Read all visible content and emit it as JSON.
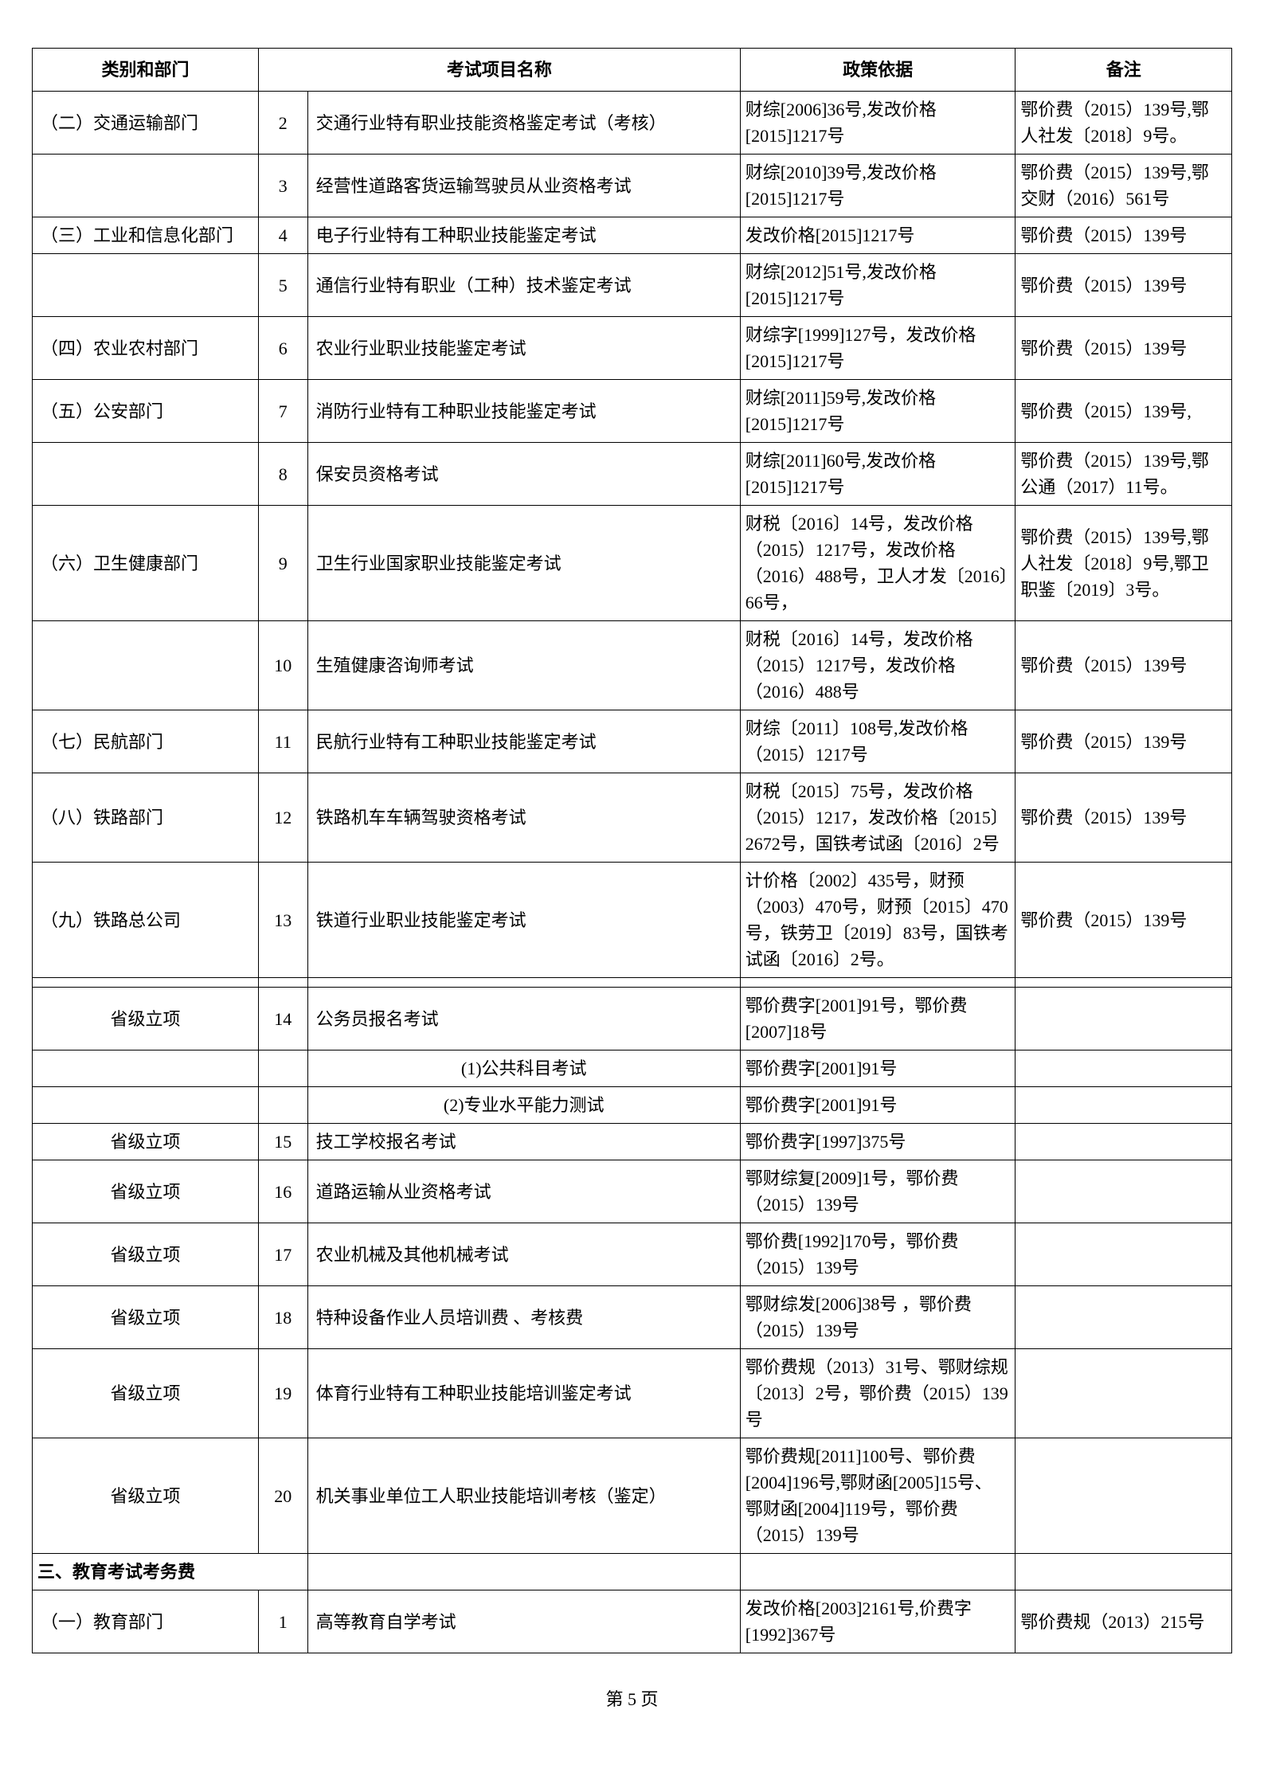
{
  "headers": {
    "dept": "类别和部门",
    "item": "考试项目名称",
    "policy": "政策依据",
    "note": "备注"
  },
  "rows": [
    {
      "dept": "（二）交通运输部门",
      "num": "2",
      "item": "交通行业特有职业技能资格鉴定考试（考核）",
      "policy": "财综[2006]36号,发改价格[2015]1217号",
      "note": "鄂价费（2015）139号,鄂人社发〔2018〕9号。"
    },
    {
      "dept": "",
      "num": "3",
      "item": "经营性道路客货运输驾驶员从业资格考试",
      "policy": "财综[2010]39号,发改价格[2015]1217号",
      "note": "鄂价费（2015）139号,鄂交财（2016）561号"
    },
    {
      "dept": "（三）工业和信息化部门",
      "num": "4",
      "item": "电子行业特有工种职业技能鉴定考试",
      "policy": "发改价格[2015]1217号",
      "note": "鄂价费（2015）139号"
    },
    {
      "dept": "",
      "num": "5",
      "item": "通信行业特有职业（工种）技术鉴定考试",
      "policy": "财综[2012]51号,发改价格[2015]1217号",
      "note": "鄂价费（2015）139号"
    },
    {
      "dept": "（四）农业农村部门",
      "num": "6",
      "item": "农业行业职业技能鉴定考试",
      "policy": "财综字[1999]127号，发改价格[2015]1217号",
      "note": "鄂价费（2015）139号"
    },
    {
      "dept": "（五）公安部门",
      "num": "7",
      "item": "消防行业特有工种职业技能鉴定考试",
      "policy": "财综[2011]59号,发改价格[2015]1217号",
      "note": "鄂价费（2015）139号,"
    },
    {
      "dept": "",
      "num": "8",
      "item": "保安员资格考试",
      "policy": "财综[2011]60号,发改价格[2015]1217号",
      "note": "鄂价费（2015）139号,鄂公通（2017）11号。"
    },
    {
      "dept": "（六）卫生健康部门",
      "num": "9",
      "item": "卫生行业国家职业技能鉴定考试",
      "policy": "财税〔2016〕14号，发改价格（2015）1217号，发改价格（2016）488号，卫人才发〔2016〕66号，",
      "note": "鄂价费（2015）139号,鄂人社发〔2018〕9号,鄂卫职鉴〔2019〕3号。"
    },
    {
      "dept": "",
      "num": "10",
      "item": "生殖健康咨询师考试",
      "policy": "财税〔2016〕14号，发改价格（2015）1217号，发改价格（2016）488号",
      "note": "鄂价费（2015）139号"
    },
    {
      "dept": "（七）民航部门",
      "num": "11",
      "item": "民航行业特有工种职业技能鉴定考试",
      "policy": "财综〔2011〕108号,发改价格（2015）1217号",
      "note": "鄂价费（2015）139号"
    },
    {
      "dept": "（八）铁路部门",
      "num": "12",
      "item": "铁路机车车辆驾驶资格考试",
      "policy": "财税〔2015〕75号，发改价格（2015）1217，发改价格〔2015〕2672号，国铁考试函〔2016〕2号",
      "note": "鄂价费（2015）139号"
    },
    {
      "dept": "（九）铁路总公司",
      "num": "13",
      "item": "铁道行业职业技能鉴定考试",
      "policy": "计价格〔2002〕435号，财预（2003）470号，财预〔2015〕470号，铁劳卫〔2019〕83号，国铁考试函〔2016〕2号。",
      "note": "鄂价费（2015）139号"
    }
  ],
  "spacer": true,
  "sub_rows": [
    {
      "dept": "省级立项",
      "deptCenter": true,
      "num": "14",
      "item": "公务员报名考试",
      "policy": "鄂价费字[2001]91号，鄂价费[2007]18号",
      "note": ""
    },
    {
      "dept": "",
      "num": "",
      "item": "(1)公共科目考试",
      "itemIndent": true,
      "policy": "鄂价费字[2001]91号",
      "note": ""
    },
    {
      "dept": "",
      "num": "",
      "item": "(2)专业水平能力测试",
      "itemIndent": true,
      "policy": "鄂价费字[2001]91号",
      "note": ""
    },
    {
      "dept": "省级立项",
      "deptCenter": true,
      "num": "15",
      "item": "技工学校报名考试",
      "policy": "鄂价费字[1997]375号",
      "note": ""
    },
    {
      "dept": "省级立项",
      "deptCenter": true,
      "num": "16",
      "item": "道路运输从业资格考试",
      "policy": "鄂财综复[2009]1号，鄂价费（2015）139号",
      "note": ""
    },
    {
      "dept": "省级立项",
      "deptCenter": true,
      "num": "17",
      "item": "农业机械及其他机械考试",
      "policy": "鄂价费[1992]170号，鄂价费（2015）139号",
      "note": ""
    },
    {
      "dept": "省级立项",
      "deptCenter": true,
      "num": "18",
      "item": "特种设备作业人员培训费 、考核费",
      "policy": "鄂财综发[2006]38号 ，鄂价费（2015）139号",
      "note": ""
    },
    {
      "dept": "省级立项",
      "deptCenter": true,
      "num": "19",
      "item": "体育行业特有工种职业技能培训鉴定考试",
      "policy": "鄂价费规（2013）31号、鄂财综规〔2013〕2号，鄂价费（2015）139号",
      "note": ""
    },
    {
      "dept": "省级立项",
      "deptCenter": true,
      "num": "20",
      "item": "机关事业单位工人职业技能培训考核（鉴定）",
      "policy": "鄂价费规[2011]100号、鄂价费[2004]196号,鄂财函[2005]15号、鄂财函[2004]119号，鄂价费（2015）139号",
      "note": ""
    }
  ],
  "section": {
    "label": "三、教育考试考务费"
  },
  "section_rows": [
    {
      "dept": "（一）教育部门",
      "num": "1",
      "item": "高等教育自学考试",
      "policy": "发改价格[2003]2161号,价费字[1992]367号",
      "note": "鄂价费规（2013）215号"
    }
  ],
  "footer": "第 5 页"
}
